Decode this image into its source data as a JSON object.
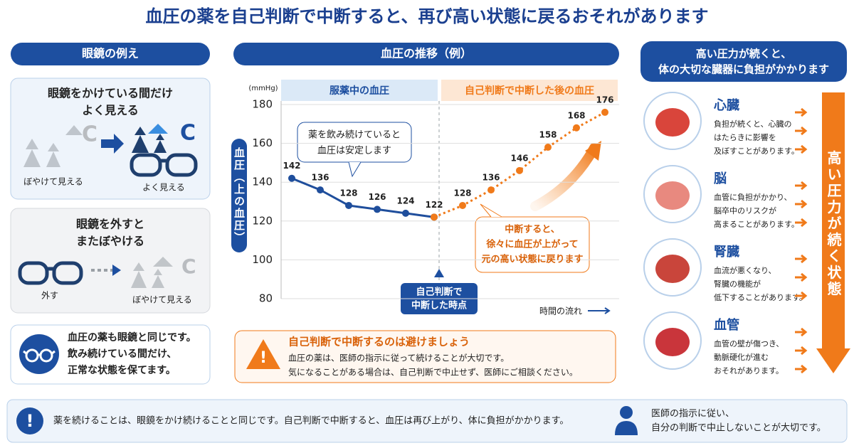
{
  "header": {
    "title": "血圧の薬を自己判断で中断すると、再び高い状態に戻るおそれがあります"
  },
  "glasses": {
    "title": "眼鏡の例え",
    "panel1": {
      "heading_lines": [
        "眼鏡をかけている間だけ",
        "よく見える"
      ],
      "blurry": "ぼやけて見える",
      "clear": "よく見える"
    },
    "panel2": {
      "heading_lines": [
        "眼鏡を外すと",
        "またぼやける"
      ],
      "remove": "外す",
      "blurry": "ぼやけて見える"
    },
    "note_lines": [
      "血圧の薬も眼鏡と同じです。",
      "飲み続けている間だけ、",
      "正常な状態を保てます。"
    ]
  },
  "chart_data": {
    "type": "line",
    "title": "血圧の推移（例）",
    "y_unit": "(mmHg)",
    "ylabel": "血圧（上の血圧）",
    "xlabel": "時間の流れ",
    "categories": [
      null,
      null,
      null,
      null,
      null,
      null,
      null,
      null,
      null,
      null,
      null,
      null
    ],
    "series": [
      {
        "name": "服薬中の血圧",
        "color": "#1f4e9c",
        "values": [
          142,
          136,
          128,
          126,
          124,
          122,
          null,
          null,
          null,
          null,
          null,
          null
        ]
      },
      {
        "name": "自己判断で中断した後の血圧",
        "color": "#f07a1a",
        "values": [
          null,
          null,
          null,
          null,
          null,
          122,
          128,
          136,
          146,
          158,
          168,
          176
        ]
      }
    ],
    "ylim": [
      80,
      180
    ],
    "yticks": [
      80,
      100,
      120,
      140,
      160,
      180
    ],
    "grid": true,
    "annotations": {
      "stable_lines": [
        "薬を飲み続けていると",
        "血圧は安定します"
      ],
      "rise_lines": [
        "中断すると、",
        "徐々に血圧が上がって",
        "元の高い状態に戻ります"
      ],
      "stop_lines": [
        "自己判断で",
        "中断した時点"
      ]
    }
  },
  "warning": {
    "title": "自己判断で中断するのは避けましょう",
    "lines": [
      "血圧の薬は、医師の指示に従って続けることが大切です。",
      "気になることがある場合は、自己判断で中止せず、医師にご相談ください。"
    ]
  },
  "organs": {
    "title_lines": [
      "高い圧力が続くと、",
      "体の大切な臓器に負担がかかります"
    ],
    "items": [
      {
        "name": "心臓",
        "lines": [
          "負担が続くと、心臓の",
          "はたらきに影響を",
          "及ぼすことがあります。"
        ]
      },
      {
        "name": "脳",
        "lines": [
          "血管に負担がかかり、",
          "脳卒中のリスクが",
          "高まることがあります。"
        ]
      },
      {
        "name": "腎臓",
        "lines": [
          "血流が悪くなり、",
          "腎臓の機能が",
          "低下することがあります。"
        ]
      },
      {
        "name": "血管",
        "lines": [
          "血管の壁が傷つき、",
          "動脈硬化が進む",
          "おそれがあります。"
        ]
      }
    ],
    "arrow_label": "高い圧力が続く状態"
  },
  "footer": {
    "message": "薬を続けることは、眼鏡をかけ続けることと同じです。自己判断で中断すると、血圧は再び上がり、体に負担がかかります。",
    "advice_lines": [
      "医師の指示に従い、",
      "自分の判断で中止しないことが大切です。"
    ]
  }
}
